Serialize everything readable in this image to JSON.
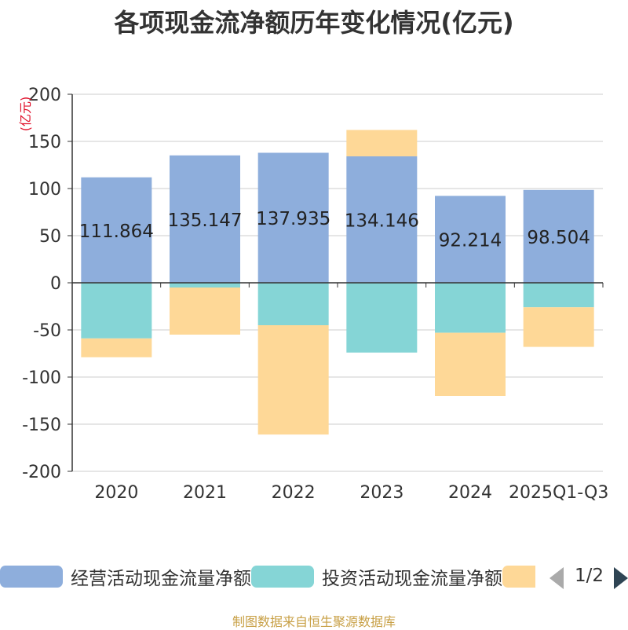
{
  "title": "各项现金流净额历年变化情况(亿元)",
  "source_note": "制图数据来自恒生聚源数据库",
  "pager": {
    "text": "1/2"
  },
  "colors": {
    "operating": "#8eaedc",
    "investing": "#85d5d6",
    "financing": "#fed897",
    "grid": "#cccccc",
    "axis": "#333333",
    "unit_label": "#e0102a"
  },
  "chart_data": {
    "type": "bar",
    "stacked": true,
    "title": "各项现金流净额历年变化情况(亿元)",
    "ylabel": "(亿元)",
    "xlabel": "",
    "ylim": [
      -200,
      200
    ],
    "yticks": [
      200,
      150,
      100,
      50,
      0,
      -50,
      -100,
      -150,
      -200
    ],
    "grid": true,
    "legend_position": "bottom",
    "categories": [
      "2020",
      "2021",
      "2022",
      "2023",
      "2024",
      "2025Q1-Q3"
    ],
    "series": [
      {
        "name": "经营活动现金流量净额",
        "color_key": "operating",
        "values": [
          111.864,
          135.147,
          137.935,
          134.146,
          92.214,
          98.504
        ],
        "labels": [
          "111.864",
          "135.147",
          "137.935",
          "134.146",
          "92.214",
          "98.504"
        ]
      },
      {
        "name": "投资活动现金流量净额",
        "color_key": "investing",
        "values": [
          -59,
          -5,
          -45,
          -74,
          -53,
          -26
        ]
      },
      {
        "name": "",
        "color_key": "financing",
        "values": [
          -20,
          -50,
          -116,
          28,
          -67,
          -42
        ]
      }
    ]
  }
}
